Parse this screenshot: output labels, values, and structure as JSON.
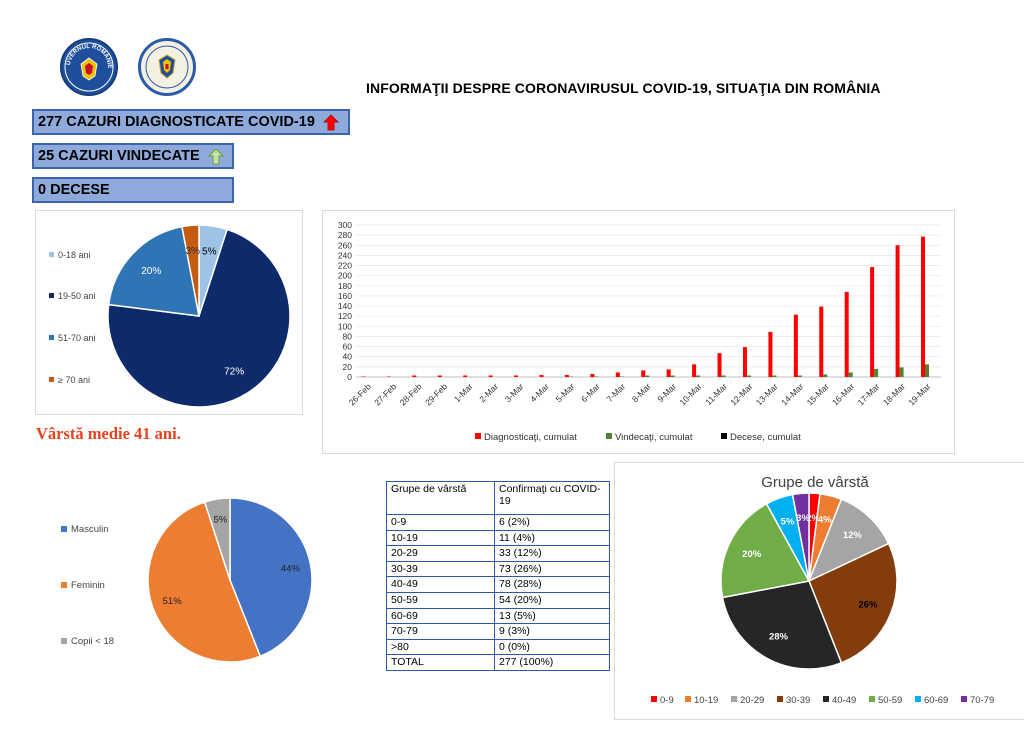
{
  "header": {
    "title": "INFORMAŢII DESPRE CORONAVIRUSUL COVID-19, SITUAŢIA DIN ROMÂNIA",
    "logo_gov_text": "GUVERNUL ROMÂNIEI",
    "logo_gov_icon": "government-seal-icon",
    "logo_mai_icon": "ministry-interior-seal-icon"
  },
  "stats": {
    "cases_label": "277 CAZURI DIAGNOSTICATE COVID-19",
    "cases_icon": "red-up-arrow-icon",
    "recovered_label": "25 CAZURI VINDECATE",
    "recovered_icon": "green-up-arrow-icon",
    "deaths_label": "0 DECESE"
  },
  "average_age": "Vârstă medie 41 ani.",
  "colors": {
    "diagnosed": "#ff0000",
    "recovered": "#548235",
    "deaths": "#000000",
    "box_fill": "#8eaadb",
    "table_border": "#2a5aa8",
    "avg_age": "#e8421c"
  },
  "age_table": {
    "headers": [
      "Grupe de vârstă",
      "Confirmaţi cu COVID-19"
    ],
    "rows": [
      [
        "0-9",
        "6 (2%)"
      ],
      [
        "10-19",
        "11 (4%)"
      ],
      [
        "20-29",
        "33 (12%)"
      ],
      [
        "30-39",
        "73 (26%)"
      ],
      [
        "40-49",
        "78 (28%)"
      ],
      [
        "50-59",
        "54 (20%)"
      ],
      [
        "60-69",
        "13 (5%)"
      ],
      [
        "70-79",
        "9 (3%)"
      ],
      [
        ">80",
        "0 (0%)"
      ],
      [
        "TOTAL",
        "277 (100%)"
      ]
    ]
  },
  "chart_data": [
    {
      "type": "pie",
      "labels": [
        "0-18 ani",
        "19-50 ani",
        "51-70 ani",
        "≥ 70 ani"
      ],
      "values": [
        5,
        72,
        20,
        3
      ],
      "slice_labels": [
        "5%",
        "72%",
        "20%",
        "3%"
      ],
      "colors": [
        "#9dc3e6",
        "#0d2a6b",
        "#2e75b6",
        "#c55a11"
      ],
      "legend": "left"
    },
    {
      "type": "bar",
      "categories": [
        "26-Feb",
        "27-Feb",
        "28-Feb",
        "29-Feb",
        "1-Mar",
        "2-Mar",
        "3-Mar",
        "4-Mar",
        "5-Mar",
        "6-Mar",
        "7-Mar",
        "8-Mar",
        "9-Mar",
        "10-Mar",
        "11-Mar",
        "12-Mar",
        "13-Mar",
        "14-Mar",
        "15-Mar",
        "16-Mar",
        "17-Mar",
        "18-Mar",
        "19-Mar"
      ],
      "series": [
        {
          "name": "Diagnosticaţi, cumulat",
          "color": "#ff0000",
          "values": [
            1,
            1,
            3,
            3,
            3,
            3,
            3,
            4,
            4,
            6,
            9,
            13,
            15,
            25,
            47,
            59,
            89,
            123,
            139,
            168,
            217,
            260,
            277
          ]
        },
        {
          "name": "Vindecaţi, cumulat",
          "color": "#548235",
          "values": [
            0,
            0,
            0,
            0,
            0,
            0,
            0,
            0,
            1,
            1,
            1,
            3,
            3,
            3,
            3,
            3,
            3,
            3,
            5,
            9,
            16,
            19,
            25
          ]
        },
        {
          "name": "Decese, cumulat",
          "color": "#000000",
          "values": [
            0,
            0,
            0,
            0,
            0,
            0,
            0,
            0,
            0,
            0,
            0,
            0,
            0,
            0,
            0,
            0,
            0,
            0,
            0,
            0,
            0,
            0,
            0
          ]
        }
      ],
      "y_ticks": [
        "0",
        "20",
        "40",
        "60",
        "80",
        "100",
        "120",
        "140",
        "160",
        "180",
        "200",
        "220",
        "240",
        "260",
        "280",
        "300"
      ],
      "ylim": [
        0,
        300
      ],
      "legend": "bottom"
    },
    {
      "type": "pie",
      "labels": [
        "Masculin",
        "Feminin",
        "Copii < 18"
      ],
      "values": [
        44,
        51,
        5
      ],
      "slice_labels": [
        "44%",
        "51%",
        "5%"
      ],
      "colors": [
        "#4472c4",
        "#ed7d31",
        "#a5a5a5"
      ],
      "legend": "left"
    },
    {
      "type": "pie",
      "title": "Grupe de vârstă",
      "labels": [
        "0-9",
        "10-19",
        "20-29",
        "30-39",
        "40-49",
        "50-59",
        "60-69",
        "70-79"
      ],
      "values": [
        2,
        4,
        12,
        26,
        28,
        20,
        5,
        3
      ],
      "slice_labels": [
        "2%",
        "4%",
        "12%",
        "26%",
        "28%",
        "20%",
        "5%",
        "3%"
      ],
      "colors": [
        "#ff0000",
        "#ed7d31",
        "#a5a5a5",
        "#843c0c",
        "#262626",
        "#70ad47",
        "#00b0f0",
        "#7030a0"
      ],
      "legend": "bottom"
    }
  ]
}
